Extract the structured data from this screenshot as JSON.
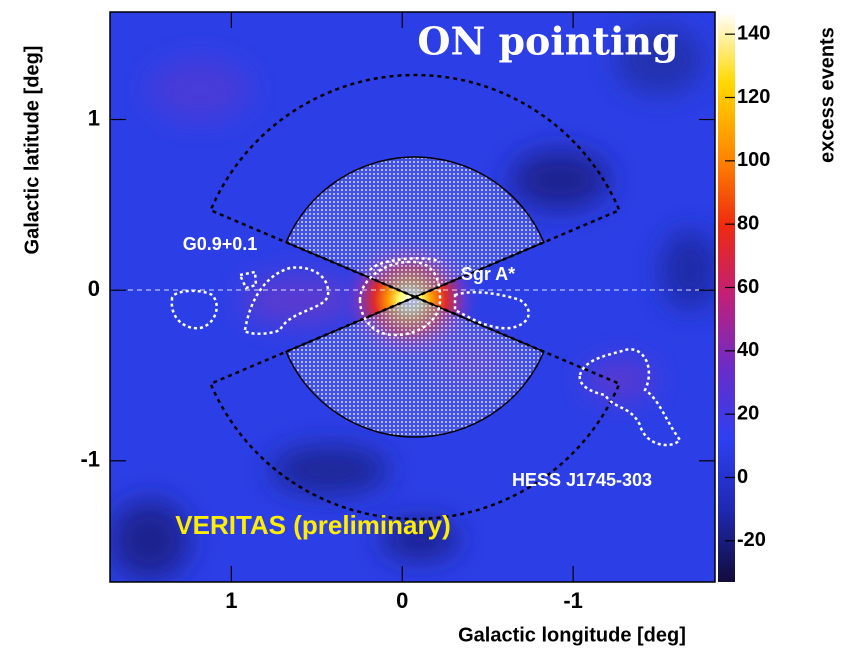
{
  "chart_data": {
    "type": "skymap",
    "title": "ON pointing",
    "xlabel": "Galactic longitude [deg]",
    "ylabel": "Galactic latitude [deg]",
    "xlim": [
      1.71,
      -1.83
    ],
    "xticks": [
      1,
      0,
      -1
    ],
    "ylim": [
      -1.71,
      1.63
    ],
    "yticks": [
      -1,
      0,
      1
    ],
    "colorbar": {
      "label": "excess events",
      "lim": [
        -33,
        147
      ],
      "ticks": [
        -20,
        0,
        20,
        40,
        60,
        80,
        100,
        120,
        140
      ],
      "colors": [
        "#120c3a",
        "#1f28b0",
        "#2d40f0",
        "#6a2cc8",
        "#c0207a",
        "#ee2a10",
        "#ff8a00",
        "#ffd800",
        "#ffffff"
      ]
    },
    "annotations": [
      "G0.9+0.1",
      "Sgr A*",
      "HESS J1745-303"
    ],
    "watermark": "VERITAS (preliminary)"
  }
}
